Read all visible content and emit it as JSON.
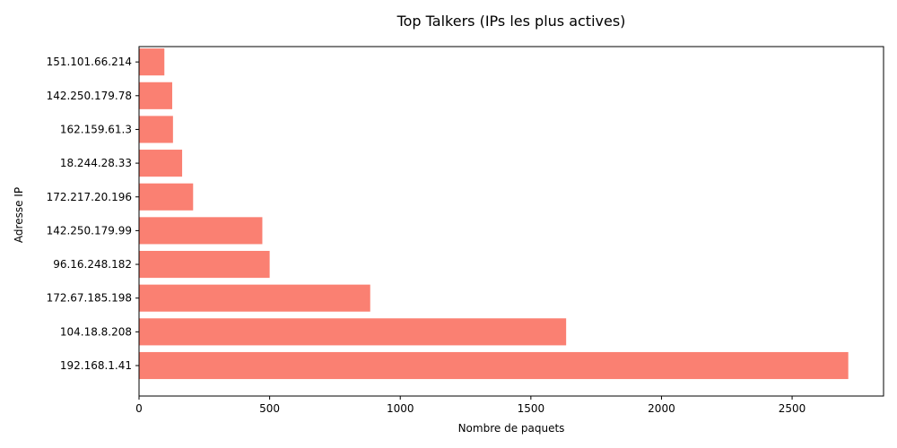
{
  "chart_data": {
    "type": "bar",
    "orientation": "horizontal",
    "title": "Top Talkers (IPs les plus actives)",
    "xlabel": "Nombre de paquets",
    "ylabel": "Adresse IP",
    "categories": [
      "192.168.1.41",
      "104.18.8.208",
      "172.67.185.198",
      "96.16.248.182",
      "142.250.179.99",
      "172.217.20.196",
      "18.244.28.33",
      "162.159.61.3",
      "142.250.179.78",
      "151.101.66.214"
    ],
    "values": [
      2715,
      1635,
      885,
      500,
      472,
      207,
      165,
      130,
      127,
      97
    ],
    "xlim": [
      0,
      2850
    ],
    "xticks": [
      0,
      500,
      1000,
      1500,
      2000,
      2500
    ],
    "color": "#FA8072",
    "grid": false
  }
}
